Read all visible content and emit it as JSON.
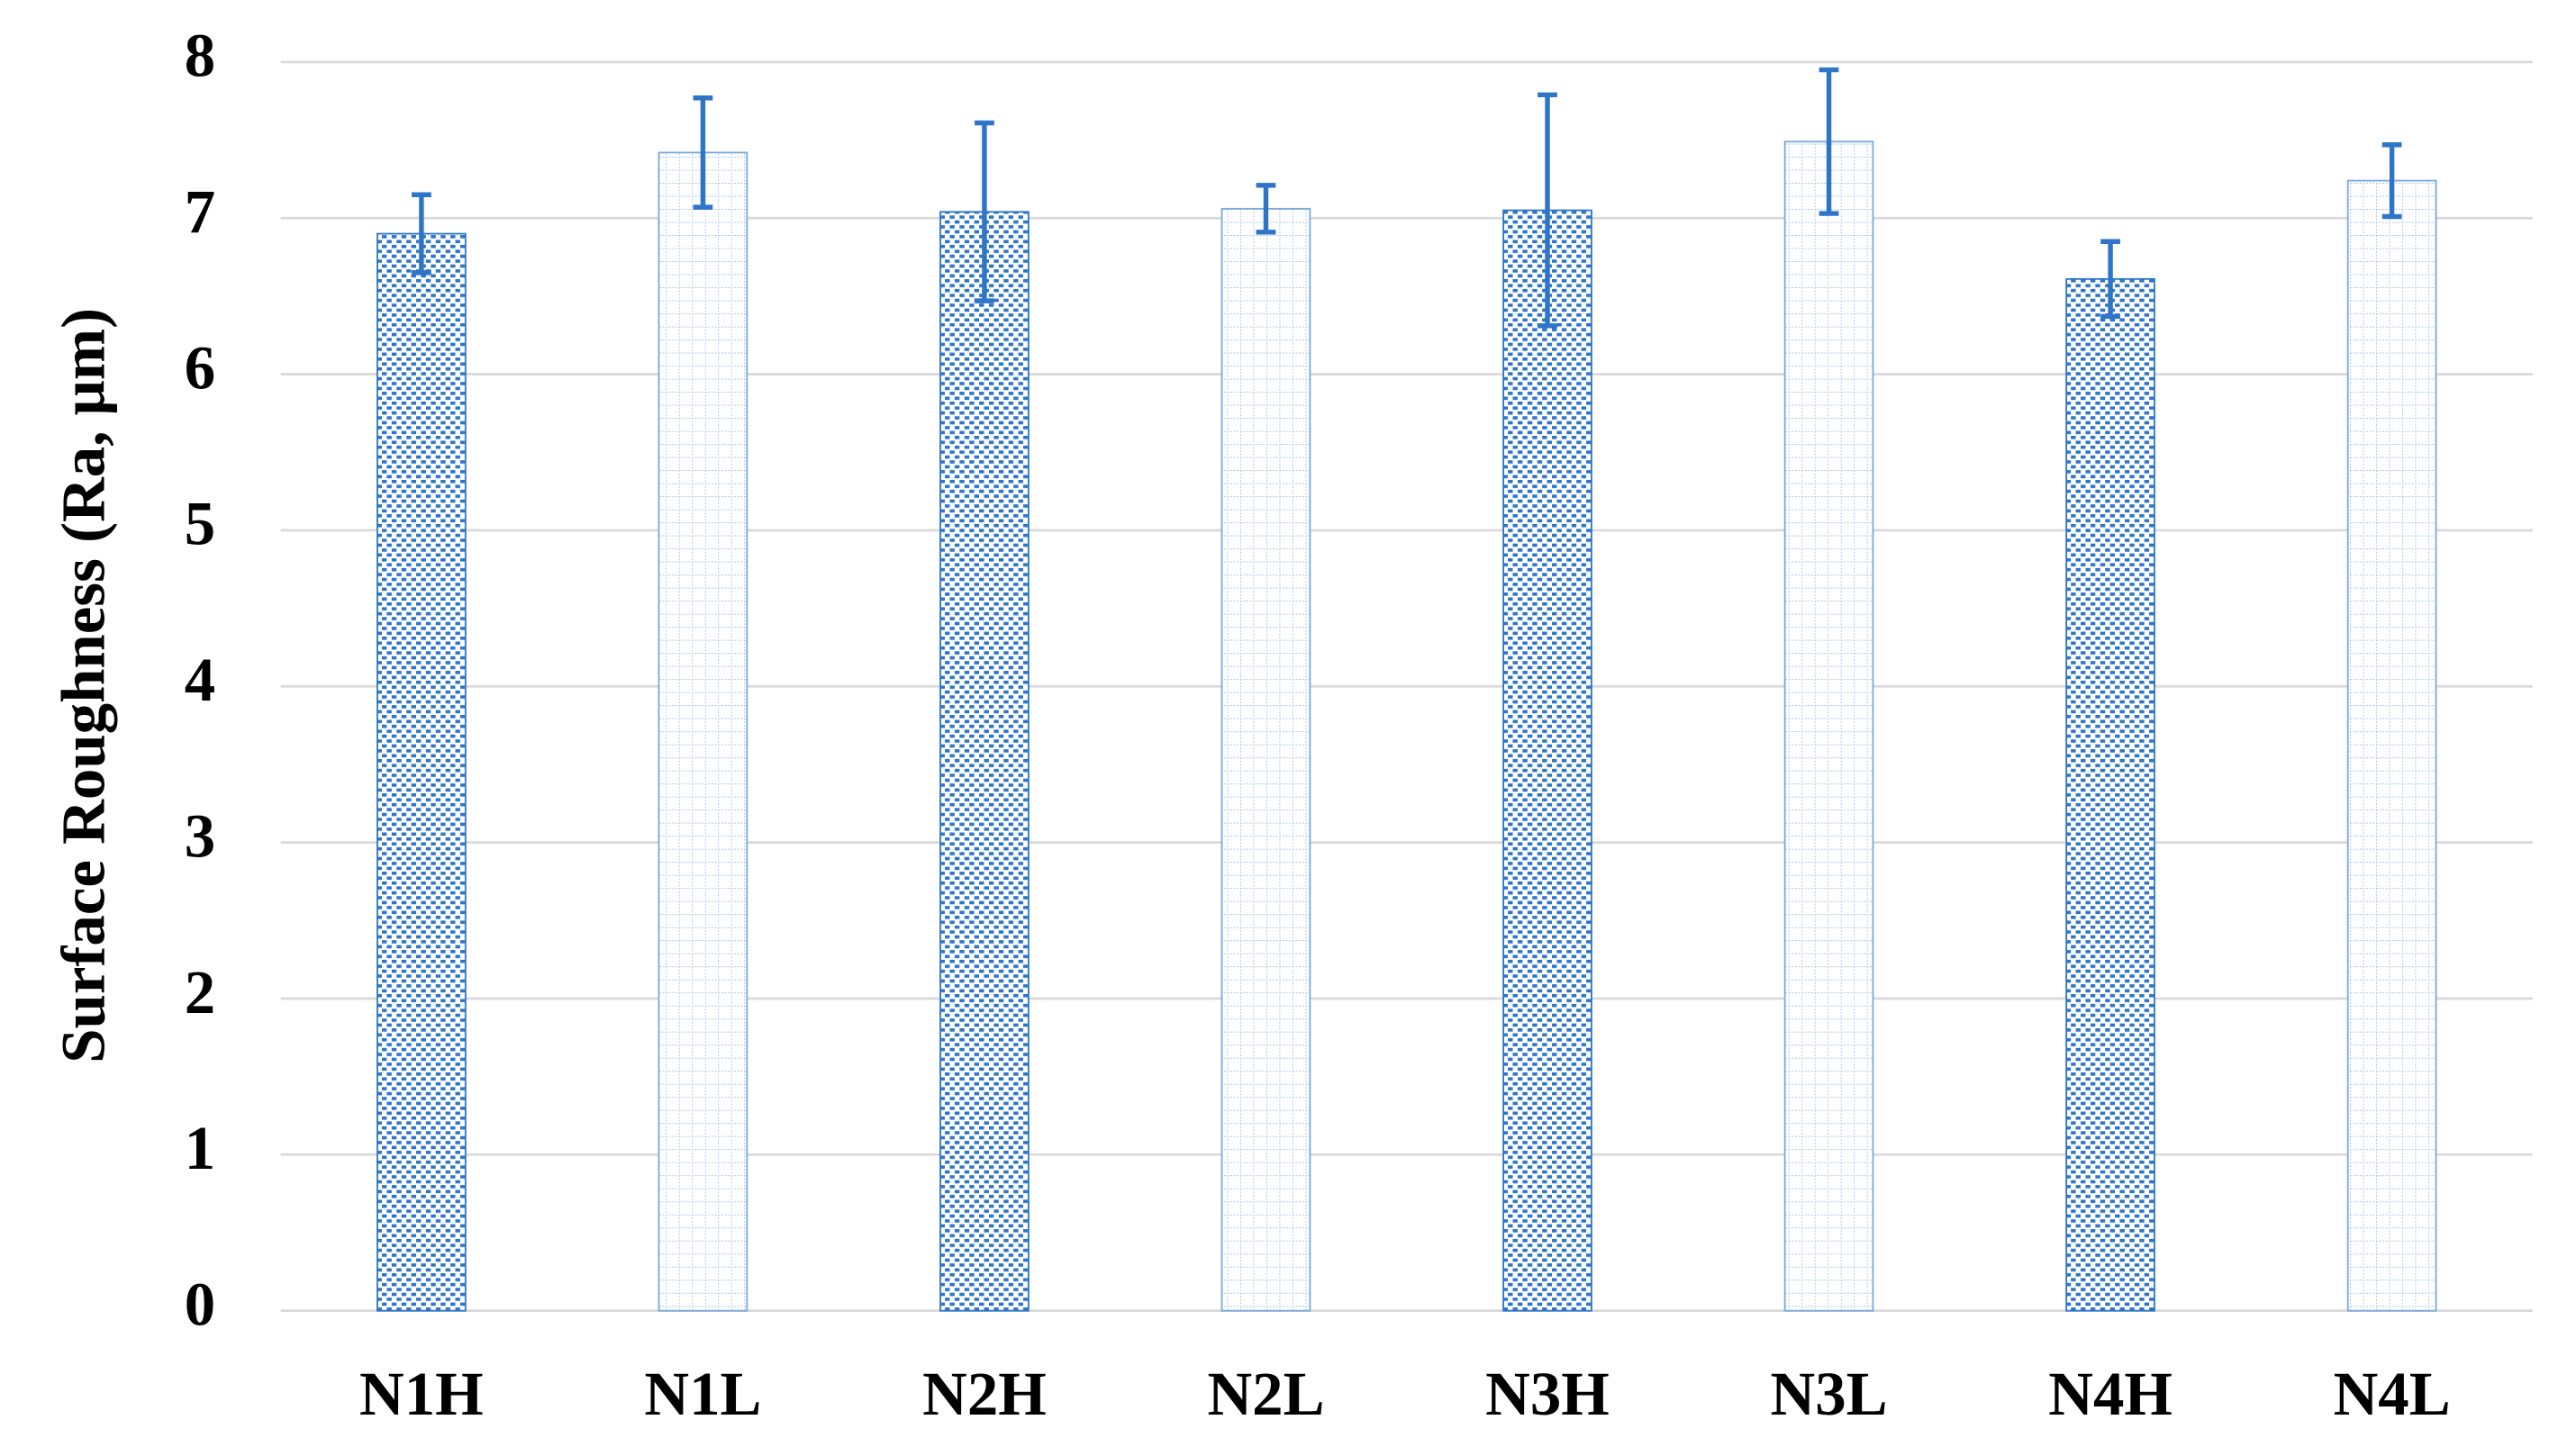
{
  "chart_data": {
    "type": "bar",
    "y_label": "Surface Roughness (Ra, μm)",
    "categories": [
      "N1H",
      "N1L",
      "N2H",
      "N2L",
      "N3H",
      "N3L",
      "N4H",
      "N4L"
    ],
    "values": [
      6.9,
      7.42,
      7.04,
      7.06,
      7.05,
      7.49,
      6.61,
      7.24
    ],
    "errors": [
      0.25,
      0.35,
      0.57,
      0.15,
      0.74,
      0.46,
      0.24,
      0.23
    ],
    "bar_patterns": [
      "dense",
      "light",
      "dense",
      "light",
      "dense",
      "light",
      "dense",
      "light"
    ],
    "color": "#2e75c8",
    "ylim": [
      0,
      8
    ],
    "yticks": [
      0,
      1,
      2,
      3,
      4,
      5,
      6,
      7,
      8
    ],
    "grid": true
  }
}
